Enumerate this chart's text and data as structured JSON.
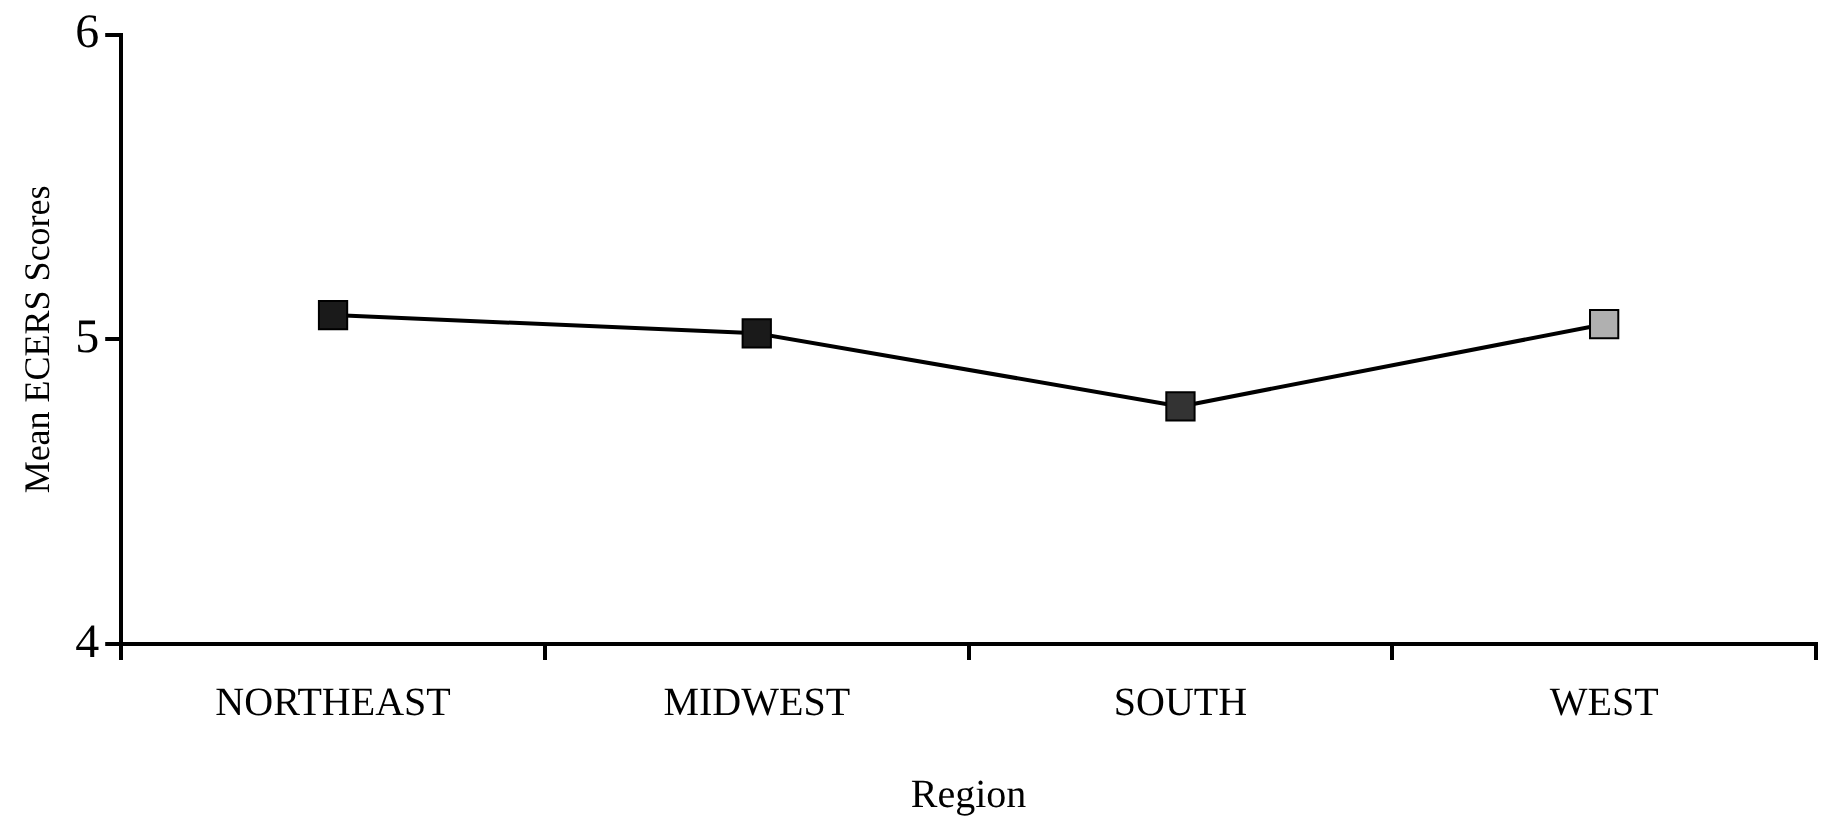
{
  "chart_data": {
    "type": "line",
    "xlabel": "Region",
    "ylabel": "Mean ECERS Scores",
    "categories": [
      "NORTHEAST",
      "MIDWEST",
      "SOUTH",
      "WEST"
    ],
    "series": [
      {
        "color": "#000000",
        "colors": [
          "#1a1a1a",
          "#1a1a1a",
          "#333333",
          "#b0b0b0"
        ],
        "values": [
          5.08,
          5.02,
          4.78,
          5.05
        ]
      }
    ],
    "ylim": [
      4,
      6
    ],
    "yticks": [
      4,
      5,
      6
    ],
    "grid": false,
    "legend": false,
    "marker": "square",
    "line_style": "solid"
  }
}
